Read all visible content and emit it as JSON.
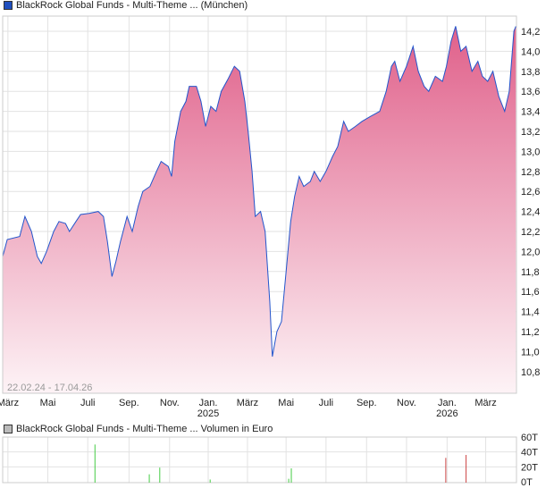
{
  "legend_price": "BlackRock Global Funds - Multi-Theme ... (München)",
  "legend_volume": "BlackRock Global Funds - Multi-Theme ... Volumen in Euro",
  "date_range": "22.02.24 - 17.04.26",
  "colors": {
    "line": "#2255cc",
    "fill_top": "#e0608a",
    "fill_bottom": "#fdf3f6",
    "vol_up": "#44cc44",
    "vol_down": "#cc4444",
    "legend_price": "#1f4fbf",
    "legend_volume": "#bbbbbb"
  },
  "chart_data": [
    {
      "type": "area",
      "title": "BlackRock Global Funds - Multi-Theme ... (München)",
      "x_unit": "days since 22.02.24",
      "xlim": [
        0,
        785
      ],
      "ylim": [
        10.6,
        14.35
      ],
      "y_ticks": [
        "10,8",
        "11,0",
        "11,2",
        "11,4",
        "11,6",
        "11,8",
        "12,0",
        "12,2",
        "12,4",
        "12,6",
        "12,8",
        "13,0",
        "13,2",
        "13,4",
        "13,6",
        "13,8",
        "14,0",
        "14,2"
      ],
      "x_ticks": [
        {
          "label": "März",
          "day": 8
        },
        {
          "label": "Mai",
          "day": 69
        },
        {
          "label": "Juli",
          "day": 130
        },
        {
          "label": "Sep.",
          "day": 193
        },
        {
          "label": "Nov.",
          "day": 255
        },
        {
          "label": "Jan.",
          "sub": "2025",
          "day": 314
        },
        {
          "label": "März",
          "day": 374
        },
        {
          "label": "Mai",
          "day": 433
        },
        {
          "label": "Juli",
          "day": 494
        },
        {
          "label": "Sep.",
          "day": 556
        },
        {
          "label": "Nov.",
          "day": 617
        },
        {
          "label": "Jan.",
          "sub": "2026",
          "day": 679
        },
        {
          "label": "März",
          "day": 738
        }
      ],
      "x": [
        0,
        7,
        26,
        34,
        44,
        53,
        59,
        67,
        78,
        86,
        96,
        102,
        112,
        119,
        132,
        146,
        154,
        160,
        167,
        173,
        180,
        190,
        198,
        207,
        214,
        225,
        235,
        242,
        253,
        258,
        263,
        272,
        280,
        285,
        296,
        303,
        310,
        318,
        326,
        334,
        344,
        354,
        362,
        370,
        375,
        381,
        386,
        394,
        401,
        408,
        412,
        419,
        426,
        433,
        440,
        446,
        453,
        460,
        470,
        476,
        485,
        494,
        504,
        512,
        521,
        528,
        539,
        549,
        562,
        576,
        586,
        594,
        599,
        607,
        617,
        627,
        635,
        644,
        651,
        661,
        672,
        678,
        685,
        692,
        700,
        708,
        717,
        726,
        733,
        741,
        749,
        758,
        767,
        774,
        781,
        784
      ],
      "y": [
        11.95,
        12.12,
        12.15,
        12.35,
        12.2,
        11.95,
        11.88,
        12.0,
        12.2,
        12.3,
        12.28,
        12.2,
        12.3,
        12.37,
        12.38,
        12.4,
        12.35,
        12.1,
        11.75,
        11.9,
        12.1,
        12.35,
        12.2,
        12.45,
        12.6,
        12.65,
        12.8,
        12.9,
        12.85,
        12.75,
        13.1,
        13.4,
        13.5,
        13.65,
        13.65,
        13.5,
        13.25,
        13.45,
        13.4,
        13.6,
        13.72,
        13.85,
        13.8,
        13.5,
        13.2,
        12.8,
        12.35,
        12.4,
        12.2,
        11.5,
        10.95,
        11.2,
        11.3,
        11.8,
        12.3,
        12.55,
        12.75,
        12.65,
        12.7,
        12.8,
        12.7,
        12.8,
        12.95,
        13.05,
        13.3,
        13.2,
        13.25,
        13.3,
        13.35,
        13.4,
        13.6,
        13.85,
        13.9,
        13.7,
        13.85,
        14.05,
        13.8,
        13.65,
        13.6,
        13.75,
        13.7,
        13.85,
        14.1,
        14.25,
        14.0,
        14.05,
        13.8,
        13.9,
        13.75,
        13.7,
        13.8,
        13.55,
        13.4,
        13.6,
        14.2,
        14.25
      ]
    },
    {
      "type": "bar",
      "title": "Volumen in Euro",
      "ylim": [
        0,
        60
      ],
      "y_ticks": [
        "0T",
        "20T",
        "40T",
        "60T"
      ],
      "bars": [
        {
          "day": 141,
          "value": 50,
          "dir": "up"
        },
        {
          "day": 224,
          "value": 10,
          "dir": "up"
        },
        {
          "day": 240,
          "value": 19,
          "dir": "up"
        },
        {
          "day": 317,
          "value": 3,
          "dir": "up"
        },
        {
          "day": 437,
          "value": 4,
          "dir": "up"
        },
        {
          "day": 441,
          "value": 18,
          "dir": "up"
        },
        {
          "day": 677,
          "value": 32,
          "dir": "down"
        },
        {
          "day": 708,
          "value": 36,
          "dir": "down"
        }
      ]
    }
  ]
}
